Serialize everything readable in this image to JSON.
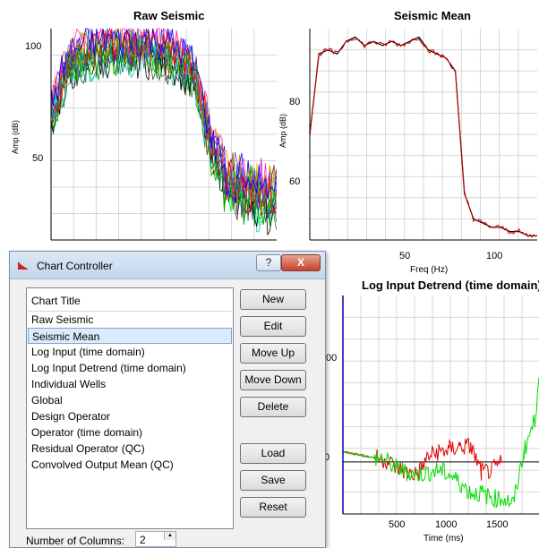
{
  "charts": {
    "raw_seismic": {
      "title": "Raw Seismic",
      "ylabel": "Amp (dB)",
      "yticks": [
        "100",
        "50"
      ]
    },
    "seismic_mean": {
      "title": "Seismic Mean",
      "ylabel": "Amp (dB)",
      "xlabel": "Freq (Hz)",
      "yticks": [
        "80",
        "60"
      ],
      "xticks": [
        "50",
        "100"
      ]
    },
    "log_input_detrend": {
      "title": "Log Input Detrend (time domain)",
      "xlabel": "Time (ms)",
      "yticks": [
        "00",
        "0"
      ],
      "xticks": [
        "500",
        "1000",
        "1500"
      ]
    }
  },
  "chart_data": [
    {
      "type": "line",
      "title": "Raw Seismic",
      "ylabel": "Amp (dB)",
      "y_ticks": [
        100,
        50
      ],
      "note": "many overlaid traces; mean envelope approx",
      "x": [
        0,
        10,
        20,
        30,
        40,
        50,
        60,
        70,
        80,
        90,
        100,
        110,
        120,
        125
      ],
      "series": [
        {
          "values": [
            75,
            93,
            96,
            98,
            97,
            98,
            97,
            95,
            88,
            60,
            55,
            52,
            50,
            50
          ]
        }
      ],
      "ylim": [
        30,
        105
      ]
    },
    {
      "type": "line",
      "title": "Seismic Mean",
      "xlabel": "Freq (Hz)",
      "ylabel": "Amp (dB)",
      "x": [
        0,
        5,
        10,
        15,
        20,
        25,
        30,
        35,
        40,
        45,
        50,
        55,
        60,
        65,
        70,
        75,
        80,
        85,
        90,
        95,
        100,
        105,
        110,
        115,
        120,
        125
      ],
      "series": [
        {
          "values": [
            74,
            93,
            94,
            93,
            96,
            97,
            95,
            96,
            95,
            96,
            95,
            96,
            97,
            94,
            93,
            92,
            89,
            60,
            54,
            53,
            52,
            52,
            51,
            51,
            50,
            50
          ]
        }
      ],
      "xlim": [
        0,
        125
      ],
      "ylim": [
        49,
        99
      ]
    },
    {
      "type": "line",
      "title": "Log Input Detrend (time domain)",
      "xlabel": "Time (ms)",
      "x": [
        0,
        100,
        200,
        300,
        400,
        500,
        600,
        700,
        800,
        900,
        1000,
        1100,
        1200,
        1300,
        1400,
        1500,
        1600,
        1700,
        1800,
        1850
      ],
      "series": [
        {
          "color": "#e00000",
          "values": [
            10,
            8,
            6,
            4,
            2,
            -5,
            -10,
            -12,
            5,
            10,
            12,
            15,
            15,
            -10,
            -8,
            0,
            null,
            null,
            null,
            null
          ]
        },
        {
          "color": "#00dd00",
          "values": [
            10,
            8,
            6,
            4,
            2,
            -5,
            -10,
            -12,
            -10,
            -8,
            -12,
            -20,
            -30,
            -30,
            -35,
            -35,
            -40,
            10,
            40,
            80
          ]
        }
      ],
      "xlim": [
        0,
        1850
      ],
      "ylim": [
        -50,
        160
      ]
    }
  ],
  "dialog": {
    "title": "Chart Controller",
    "help_label": "?",
    "close_label": "X",
    "list_header": "Chart Title",
    "items": [
      "Raw Seismic",
      "Seismic Mean",
      "Log Input (time domain)",
      "Log Input Detrend (time domain)",
      "Individual Wells",
      "Global",
      "Design Operator",
      "Operator (time domain)",
      "Residual Operator (QC)",
      "Convolved Output Mean (QC)"
    ],
    "selected_index": 1,
    "buttons": {
      "new": "New",
      "edit": "Edit",
      "move_up": "Move Up",
      "move_down": "Move Down",
      "delete": "Delete",
      "load": "Load",
      "save": "Save",
      "reset": "Reset"
    },
    "columns_label": "Number of Columns:",
    "columns_value": "2"
  }
}
